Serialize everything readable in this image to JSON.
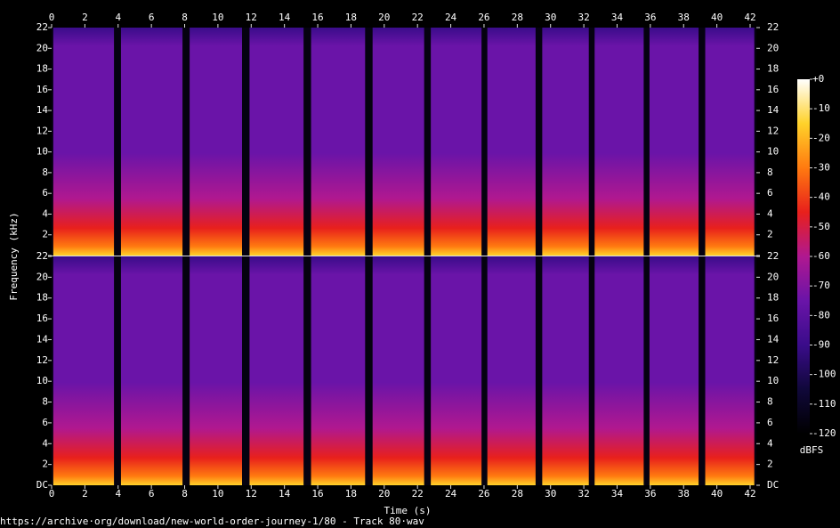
{
  "chart_data": {
    "type": "spectrogram",
    "xlabel": "Time (s)",
    "ylabel": "Frequency (kHz)",
    "colorbar_label": "dBFS",
    "source": "https://archive·org/download/new-world-order-journey-1/80 - Track 80·wav",
    "xlim": [
      0,
      42.4
    ],
    "xticks": [
      0,
      2,
      4,
      6,
      8,
      10,
      12,
      14,
      16,
      18,
      20,
      22,
      24,
      26,
      28,
      30,
      32,
      34,
      36,
      38,
      40,
      42
    ],
    "ylim": [
      0,
      22
    ],
    "yticks": [
      {
        "value": 0,
        "label": "DC"
      },
      2,
      4,
      6,
      8,
      10,
      12,
      14,
      16,
      18,
      20,
      22
    ],
    "clim": [
      -120,
      0
    ],
    "cticks": [
      {
        "value": 0,
        "label": "+0"
      },
      -10,
      -20,
      -30,
      -40,
      -50,
      -60,
      -70,
      -80,
      -90,
      -100,
      -110,
      -120
    ],
    "colormap": [
      "#000000",
      "#10083a",
      "#3a0c8a",
      "#6a14a8",
      "#b01890",
      "#e8201c",
      "#ff7a10",
      "#ffd22a",
      "#ffffff"
    ],
    "segments": [
      {
        "start": 0.1,
        "end": 3.75
      },
      {
        "start": 4.17,
        "end": 7.87
      },
      {
        "start": 8.3,
        "end": 11.45
      },
      {
        "start": 11.9,
        "end": 15.15
      },
      {
        "start": 15.6,
        "end": 18.85
      },
      {
        "start": 19.3,
        "end": 22.4
      },
      {
        "start": 22.8,
        "end": 25.85
      },
      {
        "start": 26.2,
        "end": 29.1
      },
      {
        "start": 29.5,
        "end": 32.3
      },
      {
        "start": 32.65,
        "end": 35.6
      },
      {
        "start": 35.95,
        "end": 38.9
      },
      {
        "start": 39.3,
        "end": 42.25
      }
    ]
  }
}
